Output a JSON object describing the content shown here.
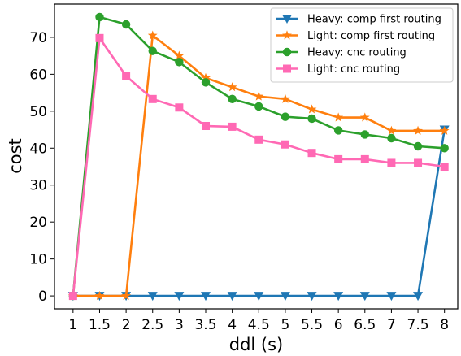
{
  "chart_data": {
    "type": "line",
    "xlabel": "ddl (s)",
    "ylabel": "cost",
    "x": [
      1,
      1.5,
      2,
      2.5,
      3,
      3.5,
      4,
      4.5,
      5,
      5.5,
      6,
      6.5,
      7,
      7.5,
      8
    ],
    "x_tick_labels": [
      "1",
      "1.5",
      "2",
      "2.5",
      "3",
      "3.5",
      "4",
      "4.5",
      "5",
      "5.5",
      "6",
      "6.5",
      "7",
      "7.5",
      "8"
    ],
    "xlim": [
      0.65,
      8.25
    ],
    "ylim": [
      -3.5,
      79
    ],
    "y_ticks": [
      0,
      10,
      20,
      30,
      40,
      50,
      60,
      70
    ],
    "grid": false,
    "legend_position": "top-right",
    "series": [
      {
        "name": "Heavy: comp first routing",
        "color": "#1f77b4",
        "marker": "triangle-down",
        "values": [
          0,
          0,
          0,
          0,
          0,
          0,
          0,
          0,
          0,
          0,
          0,
          0,
          0,
          0,
          45
        ]
      },
      {
        "name": "Light: comp first routing",
        "color": "#ff7f0e",
        "marker": "star",
        "values": [
          0,
          0,
          0,
          70.5,
          65,
          59,
          56.5,
          54,
          53.3,
          50.5,
          48.3,
          48.3,
          44.7,
          44.7,
          44.7
        ]
      },
      {
        "name": "Heavy: cnc routing",
        "color": "#2ca02c",
        "marker": "circle",
        "values": [
          0,
          75.5,
          73.5,
          66.3,
          63.3,
          57.8,
          53.3,
          51.3,
          48.5,
          48,
          44.8,
          43.7,
          42.7,
          40.5,
          40
        ]
      },
      {
        "name": "Light: cnc routing",
        "color": "#ff69b4",
        "marker": "square",
        "values": [
          0,
          69.8,
          59.5,
          53.3,
          51,
          46,
          45.8,
          42.3,
          41,
          38.7,
          37,
          37,
          36,
          36,
          35
        ]
      }
    ]
  }
}
